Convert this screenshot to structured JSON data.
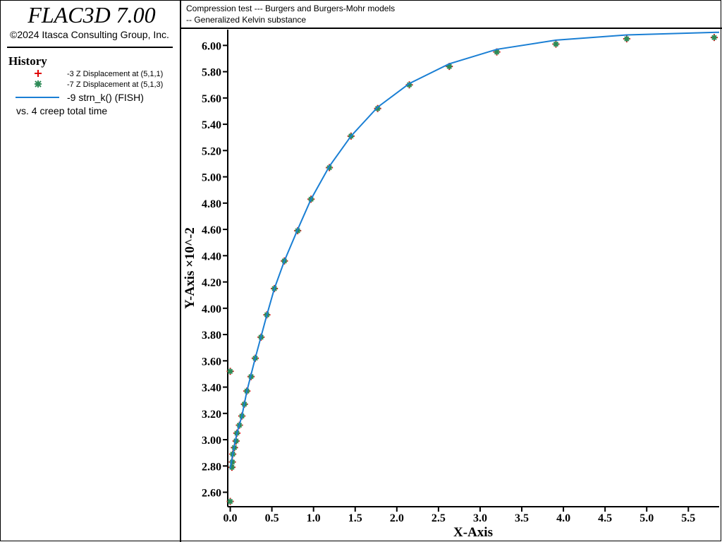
{
  "header": {
    "app": "FLAC3D 7.00",
    "copyright": "©2024 Itasca Consulting Group, Inc.",
    "section": "History",
    "vs": "vs. 4 creep total time"
  },
  "chart_data": {
    "type": "line",
    "title": "Compression test --- Burgers and Burgers-Mohr models",
    "subtitle": "-- Generalized Kelvin substance",
    "x_label": "X-Axis",
    "y_label": "Y-Axis ×10^-2",
    "xlim": [
      -0.03,
      5.87
    ],
    "ylim": [
      2.49,
      6.12
    ],
    "xticks": [
      {
        "value": 0,
        "label": "0.0"
      },
      0.5,
      {
        "value": 1,
        "label": "1.0"
      },
      1.5,
      {
        "value": 2,
        "label": "2.0"
      },
      2.5,
      {
        "value": 3,
        "label": "3.0"
      },
      3.5,
      {
        "value": 4,
        "label": "4.0"
      },
      4.5,
      {
        "value": 5,
        "label": "5.0"
      },
      5.5
    ],
    "yticks": [
      {
        "value": 2.6,
        "label": "2.60"
      },
      {
        "value": 2.8,
        "label": "2.80"
      },
      {
        "value": 3,
        "label": "3.00"
      },
      {
        "value": 3.2,
        "label": "3.20"
      },
      {
        "value": 3.4,
        "label": "3.40"
      },
      {
        "value": 3.6,
        "label": "3.60"
      },
      {
        "value": 3.8,
        "label": "3.80"
      },
      {
        "value": 4,
        "label": "4.00"
      },
      {
        "value": 4.2,
        "label": "4.20"
      },
      {
        "value": 4.4,
        "label": "4.40"
      },
      {
        "value": 4.6,
        "label": "4.60"
      },
      {
        "value": 4.8,
        "label": "4.80"
      },
      {
        "value": 5,
        "label": "5.00"
      },
      {
        "value": 5.2,
        "label": "5.20"
      },
      {
        "value": 5.4,
        "label": "5.40"
      },
      {
        "value": 5.6,
        "label": "5.60"
      },
      {
        "value": 5.8,
        "label": "5.80"
      },
      {
        "value": 6,
        "label": "6.00"
      }
    ],
    "series": [
      {
        "name": "-3 Z Displacement at (5,1,1)",
        "style": "plus",
        "color": "#e00000",
        "x": [
          0,
          0,
          0.02,
          0.025,
          0.03,
          0.05,
          0.07,
          0.08,
          0.11,
          0.14,
          0.17,
          0.2,
          0.25,
          0.3,
          0.37,
          0.44,
          0.53,
          0.65,
          0.81,
          0.97,
          1.19,
          1.45,
          1.77,
          2.15,
          2.63,
          3.2,
          3.91,
          4.76,
          5.81
        ],
        "values": [
          2.53,
          3.52,
          2.79,
          2.83,
          2.89,
          2.94,
          2.99,
          3.05,
          3.11,
          3.18,
          3.27,
          3.37,
          3.48,
          3.62,
          3.78,
          3.95,
          4.15,
          4.36,
          4.59,
          4.83,
          5.07,
          5.31,
          5.52,
          5.7,
          5.84,
          5.95,
          6.01,
          6.05,
          6.06
        ]
      },
      {
        "name": "-7 Z Displacement at (5,1,3)",
        "style": "star",
        "color": "#2e8b57",
        "x": [
          0,
          0,
          0.02,
          0.025,
          0.03,
          0.05,
          0.07,
          0.08,
          0.11,
          0.14,
          0.17,
          0.2,
          0.25,
          0.3,
          0.37,
          0.44,
          0.53,
          0.65,
          0.81,
          0.97,
          1.19,
          1.45,
          1.77,
          2.15,
          2.63,
          3.2,
          3.91,
          4.76,
          5.81
        ],
        "values": [
          2.53,
          3.52,
          2.79,
          2.83,
          2.89,
          2.94,
          2.99,
          3.05,
          3.11,
          3.18,
          3.27,
          3.37,
          3.48,
          3.62,
          3.78,
          3.95,
          4.15,
          4.36,
          4.59,
          4.83,
          5.07,
          5.31,
          5.52,
          5.7,
          5.84,
          5.95,
          6.01,
          6.05,
          6.06
        ]
      },
      {
        "name": "-9 strn_k() (FISH)",
        "style": "line",
        "color": "#1a7fd4",
        "x": [
          0,
          0.03,
          0.08,
          0.14,
          0.2,
          0.3,
          0.44,
          0.53,
          0.65,
          0.81,
          0.97,
          1.19,
          1.45,
          1.77,
          2.15,
          2.63,
          3.2,
          3.91,
          4.76,
          5.87
        ],
        "values": [
          2.78,
          2.89,
          3.05,
          3.18,
          3.37,
          3.62,
          3.95,
          4.15,
          4.36,
          4.6,
          4.83,
          5.08,
          5.31,
          5.53,
          5.71,
          5.86,
          5.97,
          6.04,
          6.08,
          6.1
        ]
      }
    ]
  }
}
